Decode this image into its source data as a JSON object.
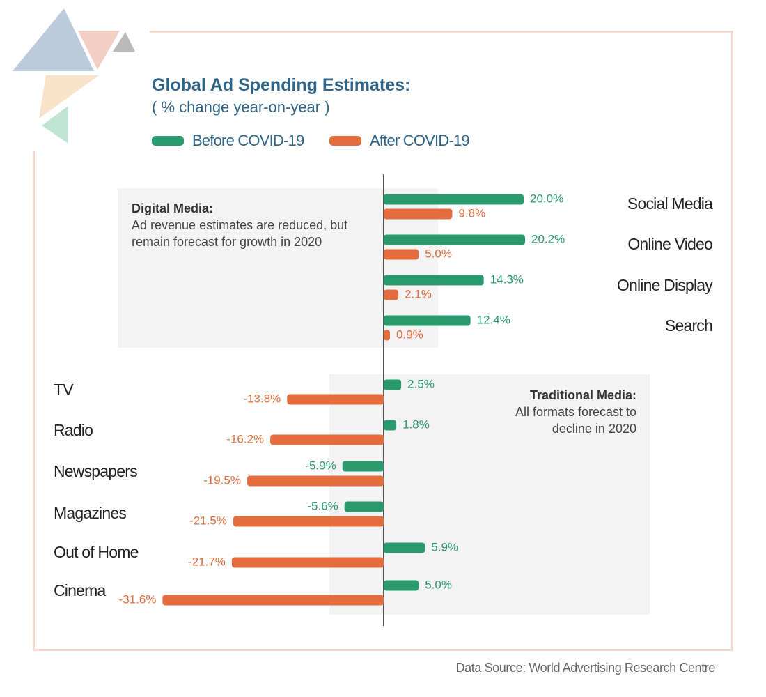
{
  "header": {
    "title": "Global Ad Spending Estimates:",
    "subtitle": "( % change year-on-year )"
  },
  "legend": {
    "before": "Before COVID-19",
    "after": "After COVID-19"
  },
  "colors": {
    "before": "#2a9a6e",
    "after": "#e36d3c",
    "title": "#2f6487",
    "panel": "#f3f3f3"
  },
  "panels": {
    "digital": {
      "heading": "Digital Media:",
      "body": "Ad revenue estimates are reduced, but remain forecast for growth in 2020"
    },
    "traditional": {
      "heading": "Traditional Media:",
      "body": "All formats forecast to decline in 2020"
    }
  },
  "source": "Data Source: World Advertising Research Centre",
  "chart_data": {
    "type": "bar",
    "orientation": "horizontal",
    "title": "Global Ad Spending Estimates:",
    "subtitle": "( % change year-on-year )",
    "unit": "%",
    "categories": [
      "Social Media",
      "Online Video",
      "Online Display",
      "Search",
      "TV",
      "Radio",
      "Newspapers",
      "Magazines",
      "Out of Home",
      "Cinema"
    ],
    "groups": [
      {
        "name": "Digital Media",
        "categories": [
          "Social Media",
          "Online Video",
          "Online Display",
          "Search"
        ]
      },
      {
        "name": "Traditional Media",
        "categories": [
          "TV",
          "Radio",
          "Newspapers",
          "Magazines",
          "Out of Home",
          "Cinema"
        ]
      }
    ],
    "series": [
      {
        "name": "Before COVID-19",
        "values": [
          20.0,
          20.2,
          14.3,
          12.4,
          2.5,
          1.8,
          -5.9,
          -5.6,
          5.9,
          5.0
        ]
      },
      {
        "name": "After COVID-19",
        "values": [
          9.8,
          5.0,
          2.1,
          0.9,
          -13.8,
          -16.2,
          -19.5,
          -21.5,
          -21.7,
          -31.6
        ]
      }
    ],
    "data_labels": {
      "Before COVID-19": [
        "20.0%",
        "20.2%",
        "14.3%",
        "12.4%",
        "2.5%",
        "1.8%",
        "-5.9%",
        "-5.6%",
        "5.9%",
        "5.0%"
      ],
      "After COVID-19": [
        "9.8%",
        "5.0%",
        "2.1%",
        "0.9%",
        "-13.8%",
        "-16.2%",
        "-19.5%",
        "-21.5%",
        "-21.7%",
        "-31.6%"
      ]
    },
    "legend_position": "top-left",
    "grid": false
  }
}
